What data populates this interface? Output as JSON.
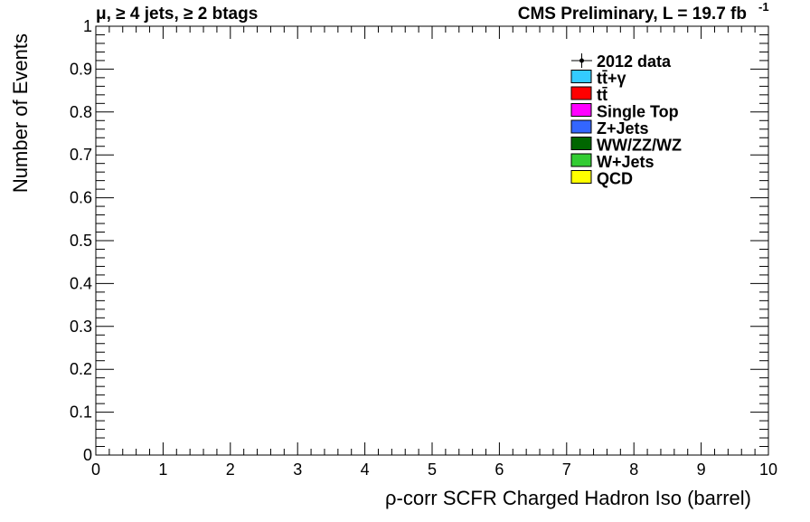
{
  "chart_data": {
    "type": "histogram",
    "title_left": "μ, ≥ 4 jets, ≥ 2 btags",
    "title_right": "CMS Preliminary, L = 19.7 fb",
    "title_right_sup": "-1",
    "xlabel": "ρ-corr SCFR Charged Hadron Iso (barrel)",
    "ylabel": "Number of Events",
    "xlim": [
      0,
      10
    ],
    "ylim": [
      0,
      1
    ],
    "x_ticks": [
      "0",
      "1",
      "2",
      "3",
      "4",
      "5",
      "6",
      "7",
      "8",
      "9",
      "10"
    ],
    "y_ticks": [
      "0",
      "0.1",
      "0.2",
      "0.3",
      "0.4",
      "0.5",
      "0.6",
      "0.7",
      "0.8",
      "0.9",
      "1"
    ],
    "grid": false,
    "legend_position": "top-right",
    "legend": [
      {
        "label": "2012 data",
        "marker": "point-errorbar",
        "color": "#000000"
      },
      {
        "label": "tt̄+γ",
        "color": "#33ccff"
      },
      {
        "label": "tt̄",
        "color": "#ff0000"
      },
      {
        "label": "Single Top",
        "color": "#ff00ff"
      },
      {
        "label": "Z+Jets",
        "color": "#3366ff"
      },
      {
        "label": "WW/ZZ/WZ",
        "color": "#006600"
      },
      {
        "label": "W+Jets",
        "color": "#33cc33"
      },
      {
        "label": "QCD",
        "color": "#ffff00"
      }
    ],
    "series": []
  }
}
